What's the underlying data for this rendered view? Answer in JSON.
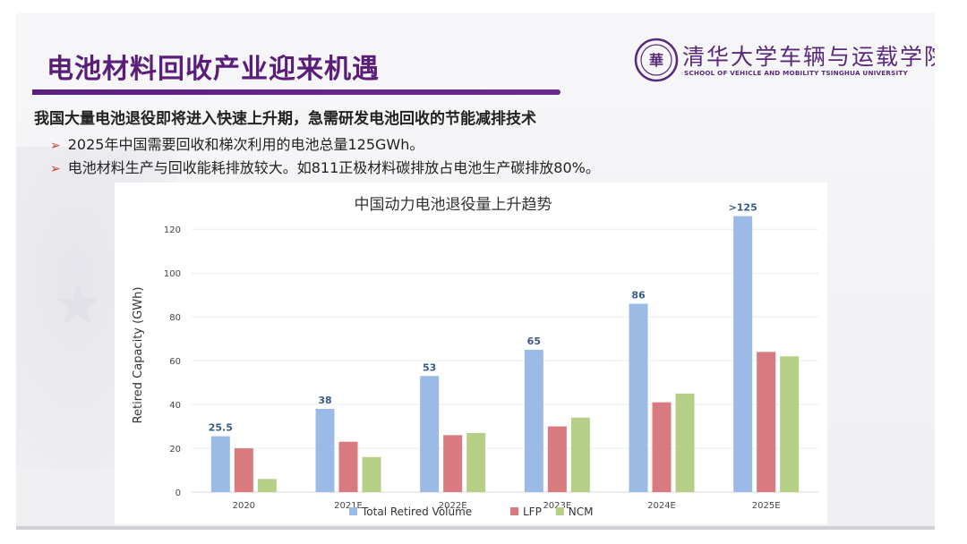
{
  "slide": {
    "title": "电池材料回收产业迎来机遇",
    "headline": "我国大量电池退役即将进入快速上升期，急需研发电池回收的节能减排技术",
    "bullets": [
      "2025年中国需要回收和梯次利用的电池总量125GWh。",
      "电池材料生产与回收能耗排放较大。如811正极材料碳排放占电池生产碳排放80%。"
    ],
    "bullet_icon": "arrow-right-icon"
  },
  "logo": {
    "name_cn": "清华大学车辆与运载学院",
    "name_en": "SCHOOL OF VEHICLE AND MOBILITY TSINGHUA UNIVERSITY",
    "icon": "tsinghua-seal-icon",
    "emblem_text": "華"
  },
  "colors": {
    "title": "#5a1e78",
    "total": "#9bbbe6",
    "lfp": "#d97a80",
    "ncm": "#b5cf86",
    "bar_label": "#3a5a8a",
    "bullet_arrow": "#c0392b"
  },
  "chart_data": {
    "type": "bar",
    "title": "中国动力电池退役量上升趋势",
    "ylabel": "Retired Capacity (GWh)",
    "xlabel": "",
    "ylim": [
      0,
      130
    ],
    "yticks": [
      0,
      20,
      40,
      60,
      80,
      100,
      120
    ],
    "grid": true,
    "legend_position": "bottom",
    "categories": [
      "2020",
      "2021E",
      "2022E",
      "2023E",
      "2024E",
      "2025E"
    ],
    "series": [
      {
        "name": "Total Retired Volume",
        "values": [
          25.5,
          38,
          53,
          65,
          86,
          126
        ],
        "labels": [
          "25.5",
          "38",
          "53",
          "65",
          "86",
          ">125"
        ]
      },
      {
        "name": "LFP",
        "values": [
          20,
          23,
          26,
          30,
          41,
          64
        ]
      },
      {
        "name": "NCM",
        "values": [
          6,
          16,
          27,
          34,
          45,
          62
        ]
      }
    ]
  }
}
